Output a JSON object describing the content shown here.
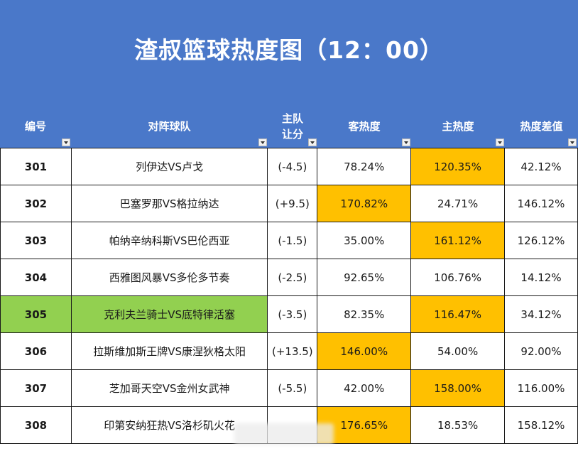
{
  "title": "渣叔篮球热度图（12：00）",
  "columns": [
    "编号",
    "对阵球队",
    "主队\n让分",
    "客热度",
    "主热度",
    "热度差值"
  ],
  "highlight_color": "#ffc000",
  "selected_color": "#92d050",
  "header_color": "#4a78c9",
  "rows": [
    {
      "id": "301",
      "match": "列伊达VS卢戈",
      "spread": "(-4.5)",
      "away": "78.24%",
      "home": "120.35%",
      "diff": "42.12%",
      "hot": "home",
      "selected": false
    },
    {
      "id": "302",
      "match": "巴塞罗那VS格拉纳达",
      "spread": "(+9.5)",
      "away": "170.82%",
      "home": "24.71%",
      "diff": "146.12%",
      "hot": "away",
      "selected": false
    },
    {
      "id": "303",
      "match": "帕纳辛纳科斯VS巴伦西亚",
      "spread": "(-1.5)",
      "away": "35.00%",
      "home": "161.12%",
      "diff": "126.12%",
      "hot": "home",
      "selected": false
    },
    {
      "id": "304",
      "match": "西雅图风暴VS多伦多节奏",
      "spread": "(-2.5)",
      "away": "92.65%",
      "home": "106.76%",
      "diff": "14.12%",
      "hot": "none",
      "selected": false
    },
    {
      "id": "305",
      "match": "克利夫兰骑士VS底特律活塞",
      "spread": "(-3.5)",
      "away": "82.35%",
      "home": "116.47%",
      "diff": "34.12%",
      "hot": "home",
      "selected": true
    },
    {
      "id": "306",
      "match": "拉斯维加斯王牌VS康涅狄格太阳",
      "spread": "(+13.5)",
      "away": "146.00%",
      "home": "54.00%",
      "diff": "92.00%",
      "hot": "away",
      "selected": false
    },
    {
      "id": "307",
      "match": "芝加哥天空VS金州女武神",
      "spread": "(-5.5)",
      "away": "42.00%",
      "home": "158.00%",
      "diff": "116.00%",
      "hot": "home",
      "selected": false
    },
    {
      "id": "308",
      "match": "印第安纳狂热VS洛杉矶火花",
      "spread": "",
      "away": "176.65%",
      "home": "18.53%",
      "diff": "158.12%",
      "hot": "away",
      "selected": false
    }
  ]
}
